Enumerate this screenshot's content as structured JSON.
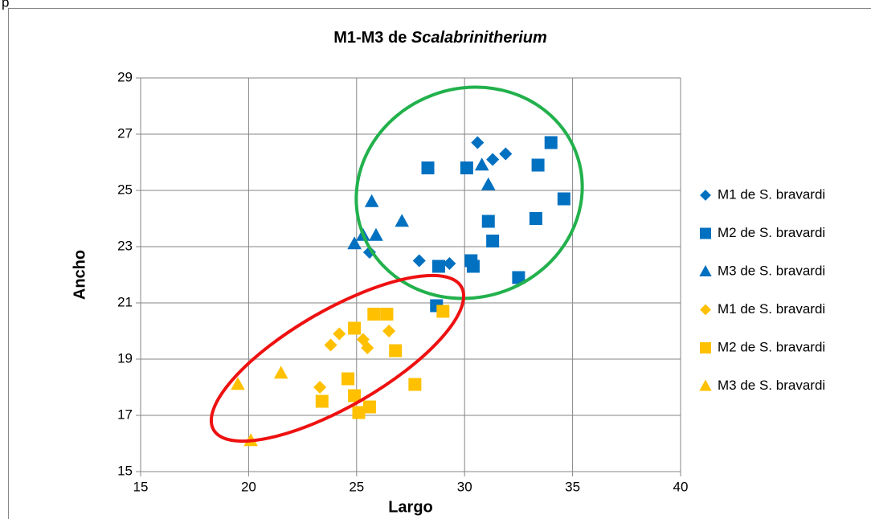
{
  "fragment": "p",
  "chart_data": {
    "type": "scatter",
    "title": {
      "text": "M1-M3 de",
      "italic": "Scalabrinitherium"
    },
    "xlabel": "Largo",
    "ylabel": "Ancho",
    "xlim": [
      15,
      40
    ],
    "xticks": [
      15,
      20,
      25,
      30,
      35,
      40
    ],
    "ylim": [
      15,
      29
    ],
    "yticks": [
      15,
      17,
      19,
      21,
      23,
      25,
      27,
      29
    ],
    "grid": true,
    "legend": "right",
    "series": [
      {
        "name": "M1 de S. bravardi",
        "color": "#0070c0",
        "marker": "diamond",
        "x": [
          30.6,
          31.3,
          31.9,
          25.6,
          27.9,
          29.3
        ],
        "values": [
          26.7,
          26.1,
          26.3,
          22.8,
          22.5,
          22.4
        ]
      },
      {
        "name": "M2 de S. bravardi",
        "color": "#0070c0",
        "marker": "square",
        "x": [
          28.3,
          30.1,
          34.0,
          33.4,
          34.6,
          31.1,
          33.3,
          31.3,
          30.3,
          30.4,
          28.8,
          32.5,
          28.7
        ],
        "values": [
          25.8,
          25.8,
          26.7,
          25.9,
          24.7,
          23.9,
          24.0,
          23.2,
          22.5,
          22.3,
          22.3,
          21.9,
          20.9
        ]
      },
      {
        "name": "M3 de S. bravardi",
        "color": "#0070c0",
        "marker": "triangle",
        "x": [
          25.7,
          27.1,
          25.3,
          25.9,
          24.9,
          30.8,
          31.1
        ],
        "values": [
          24.6,
          23.9,
          23.4,
          23.4,
          23.1,
          25.9,
          25.2
        ]
      },
      {
        "name": "M1 de S. bravardi",
        "color": "#ffc000",
        "marker": "diamond",
        "x": [
          23.8,
          24.2,
          25.3,
          25.5,
          26.5,
          23.3
        ],
        "values": [
          19.5,
          19.9,
          19.7,
          19.4,
          20.0,
          18.0
        ]
      },
      {
        "name": "M2 de S. bravardi",
        "color": "#ffc000",
        "marker": "square",
        "x": [
          25.8,
          26.4,
          24.9,
          26.8,
          29.0,
          24.6,
          24.9,
          23.4,
          25.1,
          25.6,
          27.7
        ],
        "values": [
          20.6,
          20.6,
          20.1,
          19.3,
          20.7,
          18.3,
          17.7,
          17.5,
          17.1,
          17.3,
          18.1
        ]
      },
      {
        "name": "M3 de S. bravardi",
        "color": "#ffc000",
        "marker": "triangle",
        "x": [
          19.5,
          21.5,
          20.1
        ],
        "values": [
          18.1,
          18.5,
          16.1
        ]
      }
    ]
  }
}
